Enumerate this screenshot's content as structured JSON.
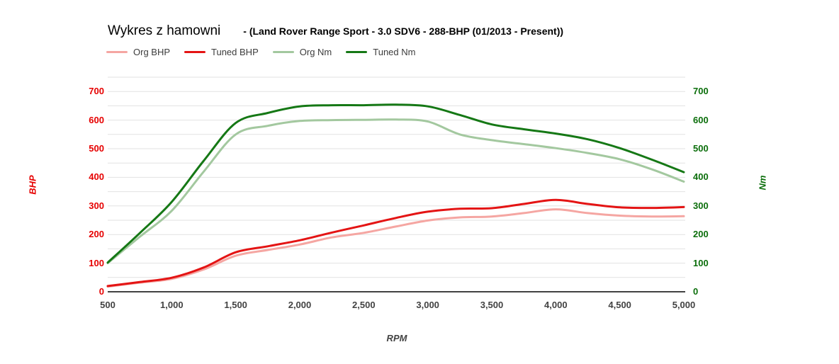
{
  "header": {
    "title": "Wykres z hamowni",
    "subtitle": "- (Land Rover Range Sport - 3.0 SDV6 - 288-BHP (01/2013 - Present))"
  },
  "legend": {
    "items": [
      {
        "label": "Org BHP",
        "color": "#f5a6a2"
      },
      {
        "label": "Tuned BHP",
        "color": "#e41414"
      },
      {
        "label": "Org Nm",
        "color": "#a3c89f"
      },
      {
        "label": "Tuned Nm",
        "color": "#157815"
      }
    ]
  },
  "axes": {
    "left": {
      "title": "BHP",
      "color": "#e60000",
      "ticks": [
        0,
        100,
        200,
        300,
        400,
        500,
        600,
        700
      ]
    },
    "right": {
      "title": "Nm",
      "color": "#0b6e0b",
      "ticks": [
        0,
        100,
        200,
        300,
        400,
        500,
        600,
        700
      ]
    },
    "x": {
      "title": "RPM",
      "color": "#424242",
      "tick_values": [
        500,
        1000,
        1500,
        2000,
        2500,
        3000,
        3500,
        4000,
        4500,
        5000
      ],
      "tick_labels": [
        "500",
        "1,000",
        "1,500",
        "2,000",
        "2,500",
        "3,000",
        "3,500",
        "4,000",
        "4,500",
        "5,000"
      ]
    }
  },
  "chart_data": {
    "type": "line",
    "title": "Wykres z hamowni",
    "subtitle": "- (Land Rover Range Sport - 3.0 SDV6 - 288-BHP (01/2013 - Present))",
    "xlabel": "RPM",
    "ylabel_left": "BHP",
    "ylabel_right": "Nm",
    "xlim": [
      500,
      5000
    ],
    "ylim": [
      0,
      750
    ],
    "grid_step": 50,
    "grid_color": "#e2e2e2",
    "axis_line_color": "#424242",
    "legend_position": "top-left",
    "x": [
      500,
      750,
      1000,
      1250,
      1500,
      1750,
      2000,
      2250,
      2500,
      2750,
      3000,
      3250,
      3500,
      3750,
      4000,
      4250,
      4500,
      4750,
      5000
    ],
    "series": [
      {
        "name": "Org BHP",
        "axis": "left",
        "color": "#f5a6a2",
        "values": [
          18,
          32,
          45,
          78,
          126,
          146,
          165,
          190,
          206,
          228,
          249,
          260,
          263,
          275,
          288,
          275,
          266,
          263,
          264
        ]
      },
      {
        "name": "Tuned BHP",
        "axis": "left",
        "color": "#e41414",
        "values": [
          20,
          34,
          49,
          85,
          138,
          159,
          180,
          207,
          232,
          258,
          280,
          290,
          292,
          307,
          321,
          307,
          295,
          293,
          296
        ]
      },
      {
        "name": "Org Nm",
        "axis": "right",
        "color": "#a3c89f",
        "values": [
          100,
          192,
          283,
          420,
          550,
          580,
          597,
          600,
          601,
          602,
          595,
          550,
          530,
          516,
          502,
          485,
          463,
          428,
          385
        ]
      },
      {
        "name": "Tuned Nm",
        "axis": "right",
        "color": "#157815",
        "values": [
          102,
          205,
          314,
          458,
          590,
          625,
          648,
          652,
          652,
          654,
          648,
          618,
          585,
          568,
          553,
          533,
          502,
          462,
          418
        ]
      }
    ]
  }
}
